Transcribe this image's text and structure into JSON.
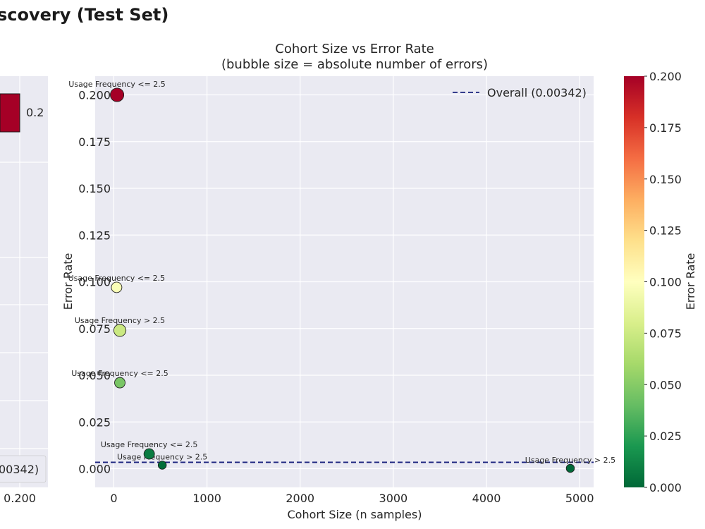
{
  "page": {
    "title": "scovery (Test Set)"
  },
  "left_panel": {
    "bar_value_label": "0.2",
    "legend_fragment": "00342)",
    "xtick_fragment": "0.200"
  },
  "chart_data": {
    "type": "scatter",
    "title": "Cohort Size vs Error Rate",
    "subtitle": "(bubble size = absolute number of errors)",
    "xlabel": "Cohort Size (n samples)",
    "ylabel": "Error Rate",
    "xlim": [
      -200,
      5150
    ],
    "ylim": [
      -0.01,
      0.21
    ],
    "xticks": [
      0,
      1000,
      2000,
      3000,
      4000,
      5000
    ],
    "yticks": [
      "0.000",
      "0.025",
      "0.050",
      "0.075",
      "0.100",
      "0.125",
      "0.150",
      "0.175",
      "0.200"
    ],
    "grid": true,
    "legend": {
      "position": "top-right",
      "entries": [
        "Overall (0.00342)"
      ]
    },
    "reference_line": {
      "y": 0.00342,
      "style": "dashed",
      "color": "#1a237e"
    },
    "colorbar": {
      "label": "Error Rate",
      "range": [
        0.0,
        0.2
      ],
      "ticks": [
        "0.000",
        "0.025",
        "0.050",
        "0.075",
        "0.100",
        "0.125",
        "0.150",
        "0.175",
        "0.200"
      ],
      "colormap": "RdYlGn_r"
    },
    "points": [
      {
        "label": "Usage Frequency <= 2.5",
        "x": 35,
        "y": 0.2,
        "errors": 7
      },
      {
        "label": "Usage Frequency <= 2.5",
        "x": 30,
        "y": 0.097,
        "errors": 3
      },
      {
        "label": "Usage Frequency > 2.5",
        "x": 65,
        "y": 0.074,
        "errors": 5
      },
      {
        "label": "Usage Frequency <= 2.5",
        "x": 65,
        "y": 0.046,
        "errors": 3
      },
      {
        "label": "Usage Frequency <= 2.5",
        "x": 380,
        "y": 0.0079,
        "errors": 3
      },
      {
        "label": "Usage Frequency > 2.5",
        "x": 520,
        "y": 0.0019,
        "errors": 1
      },
      {
        "label": "Usage Frequency > 2.5",
        "x": 4900,
        "y": 0.0002,
        "errors": 1
      }
    ]
  }
}
